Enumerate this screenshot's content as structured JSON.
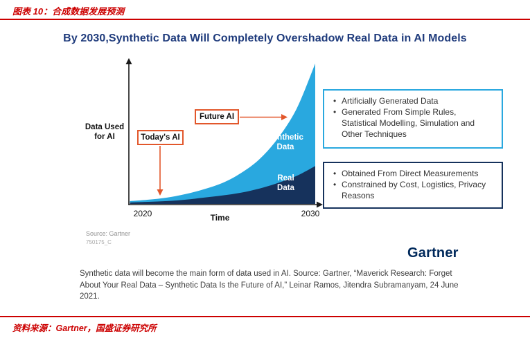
{
  "report": {
    "figure_label": "图表 10：合成数据发展预测",
    "footer_source": "资料来源：Gartner，国盛证券研究所",
    "accent_color": "#CC0000"
  },
  "figure": {
    "title": "By 2030,Synthetic Data Will Completely Overshadow Real Data in AI Models",
    "title_color": "#1F3B7C",
    "ylabel_line1": "Data Used",
    "ylabel_line2": "for AI",
    "xlabel": "Time",
    "x_tick_left": "2020",
    "x_tick_right": "2030",
    "callout_today": "Today's AI",
    "callout_future": "Future AI",
    "callout_color": "#E2572B",
    "synthetic_label_line1": "Synthetic",
    "synthetic_label_line2": "Data",
    "real_label_line1": "Real",
    "real_label_line2": "Data",
    "source_note": "Source: Gartner",
    "source_code": "750175_C",
    "logo_text": "Gartner",
    "logo_color": "#00295B",
    "caption": "Synthetic data will become the main form of data used in AI. Source: Gartner, “Maverick Research: Forget About Your Real Data – Synthetic Data Is the Future of AI,” Leinar Ramos, Jitendra Subramanyam, 24 June 2021."
  },
  "annotation_boxes": {
    "synthetic": {
      "border_color": "#29A8DF",
      "bullets": [
        "Artificially Generated Data",
        "Generated From Simple Rules, Statistical Modelling, Simulation and Other Techniques"
      ]
    },
    "real": {
      "border_color": "#16325C",
      "bullets": [
        "Obtained From Direct Measurements",
        "Constrained by Cost, Logistics, Privacy Reasons"
      ]
    }
  },
  "chart_data": {
    "type": "area",
    "stacked": true,
    "title": "By 2030,Synthetic Data Will Completely Overshadow Real Data in AI Models",
    "xlabel": "Time",
    "ylabel": "Data Used for AI",
    "x": [
      2020,
      2021,
      2022,
      2023,
      2024,
      2025,
      2026,
      2027,
      2028,
      2029,
      2030
    ],
    "x_tick_labels": [
      "2020",
      "2030"
    ],
    "y_axis_note": "No numeric scale shown; values are relative units (0-100) estimated from the drawn curves",
    "ylim": [
      0,
      100
    ],
    "grid": false,
    "legend": "labels placed inside areas",
    "series": [
      {
        "name": "Real Data",
        "color": "#16325C",
        "values": [
          1,
          1.5,
          2,
          3,
          4.5,
          6,
          8,
          11,
          15,
          20,
          27
        ]
      },
      {
        "name": "Synthetic Data",
        "color": "#29A8DF",
        "values": [
          1,
          1.5,
          2.5,
          4,
          6,
          9,
          14,
          21,
          32,
          48,
          73
        ]
      }
    ],
    "annotations": [
      {
        "label": "Today's AI",
        "arrow": "points down into the data area near 2021"
      },
      {
        "label": "Future AI",
        "arrow": "points right toward the synthetic data area"
      }
    ]
  }
}
